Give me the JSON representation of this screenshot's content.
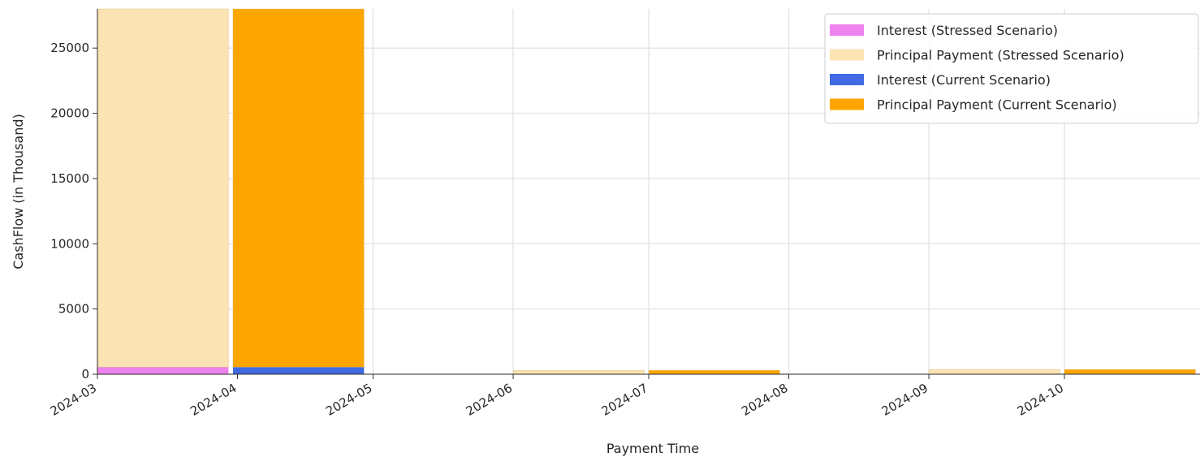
{
  "chart_data": {
    "type": "bar",
    "stacked": true,
    "title": "",
    "xlabel": "Payment Time",
    "ylabel": "CashFlow (in Thousand)",
    "x_ticks": [
      "2024-03",
      "2024-04",
      "2024-05",
      "2024-06",
      "2024-07",
      "2024-08",
      "2024-09",
      "2024-10"
    ],
    "x_range": [
      "2024-03-01",
      "2024-10-31"
    ],
    "ylim": [
      0,
      28000
    ],
    "y_ticks": [
      0,
      5000,
      10000,
      15000,
      20000,
      25000
    ],
    "grid": true,
    "legend_position": "top-right",
    "bar_width_days": 29,
    "colors": {
      "interest_stressed": "#ee82ee",
      "principal_stressed": "#fce3b4",
      "interest_current": "#4169e1",
      "principal_current": "#ffa500",
      "grid": "#e6e6e6",
      "axis": "#333333"
    },
    "dates_stressed": [
      "2024-03-01",
      "2024-06-01",
      "2024-09-01"
    ],
    "dates_current": [
      "2024-03-31",
      "2024-07-01",
      "2024-10-01"
    ],
    "series": [
      {
        "name": "Interest (Stressed Scenario)",
        "color_key": "interest_stressed",
        "group": "stressed",
        "layer": "base",
        "values": [
          550,
          20,
          15
        ]
      },
      {
        "name": "Principal Payment (Stressed Scenario)",
        "color_key": "principal_stressed",
        "group": "stressed",
        "layer": "top",
        "values": [
          27450,
          280,
          350
        ]
      },
      {
        "name": "Interest (Current Scenario)",
        "color_key": "interest_current",
        "group": "current",
        "layer": "base",
        "values": [
          550,
          20,
          15
        ]
      },
      {
        "name": "Principal Payment (Current Scenario)",
        "color_key": "principal_current",
        "group": "current",
        "layer": "top",
        "values": [
          27450,
          280,
          350
        ]
      }
    ]
  }
}
